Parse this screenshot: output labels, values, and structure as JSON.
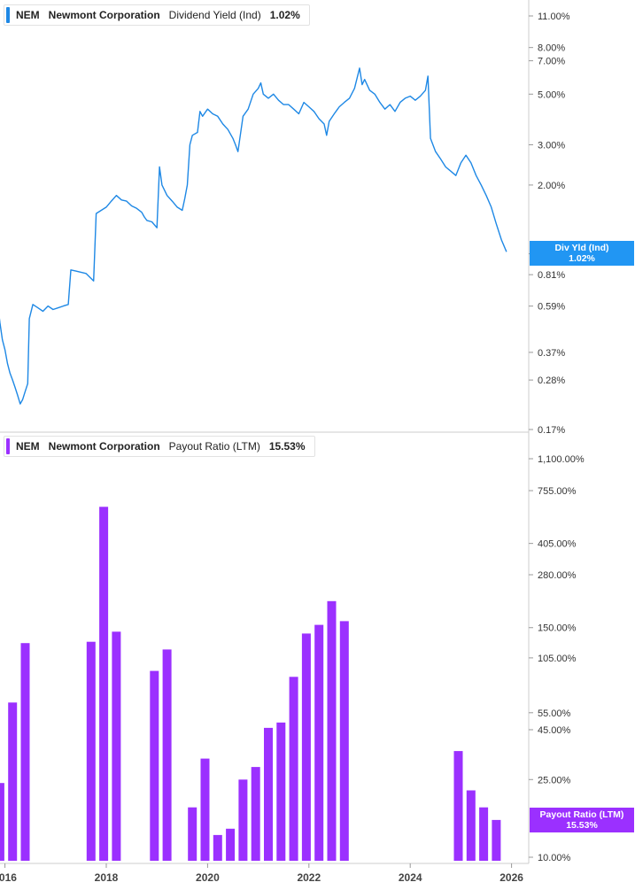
{
  "colors": {
    "yield": "#1e88e5",
    "payout": "#9b30ff",
    "axis": "#cccccc",
    "badge_yield": "#2196f3",
    "badge_payout": "#9b30ff"
  },
  "legend_top": {
    "ticker": "NEM",
    "company": "Newmont Corporation",
    "metric": "Dividend Yield (Ind)",
    "value": "1.02%"
  },
  "legend_bottom": {
    "ticker": "NEM",
    "company": "Newmont Corporation",
    "metric": "Payout Ratio (LTM)",
    "value": "15.53%"
  },
  "badge_top": {
    "label": "Div Yld (Ind)",
    "value": "1.02%"
  },
  "badge_bottom": {
    "label": "Payout Ratio (LTM)",
    "value": "15.53%"
  },
  "chart_data": [
    {
      "type": "line",
      "scale": "log",
      "series": [
        {
          "points": [
            [
              2015.85,
              0.62
            ],
            [
              2015.9,
              0.5
            ],
            [
              2015.95,
              0.42
            ],
            [
              2016.0,
              0.38
            ],
            [
              2016.05,
              0.33
            ],
            [
              2016.1,
              0.3
            ],
            [
              2016.15,
              0.28
            ],
            [
              2016.2,
              0.26
            ],
            [
              2016.25,
              0.24
            ],
            [
              2016.3,
              0.22
            ],
            [
              2016.35,
              0.23
            ],
            [
              2016.4,
              0.25
            ],
            [
              2016.45,
              0.27
            ],
            [
              2016.48,
              0.52
            ],
            [
              2016.55,
              0.6
            ],
            [
              2016.65,
              0.58
            ],
            [
              2016.75,
              0.56
            ],
            [
              2016.85,
              0.59
            ],
            [
              2016.95,
              0.57
            ],
            [
              2017.05,
              0.58
            ],
            [
              2017.15,
              0.59
            ],
            [
              2017.25,
              0.6
            ],
            [
              2017.3,
              0.85
            ],
            [
              2017.4,
              0.84
            ],
            [
              2017.5,
              0.83
            ],
            [
              2017.6,
              0.82
            ],
            [
              2017.7,
              0.78
            ],
            [
              2017.75,
              0.76
            ],
            [
              2017.8,
              1.5
            ],
            [
              2017.9,
              1.55
            ],
            [
              2018.0,
              1.6
            ],
            [
              2018.1,
              1.7
            ],
            [
              2018.2,
              1.8
            ],
            [
              2018.3,
              1.72
            ],
            [
              2018.4,
              1.7
            ],
            [
              2018.5,
              1.62
            ],
            [
              2018.6,
              1.58
            ],
            [
              2018.7,
              1.52
            ],
            [
              2018.75,
              1.45
            ],
            [
              2018.8,
              1.4
            ],
            [
              2018.9,
              1.38
            ],
            [
              2019.0,
              1.3
            ],
            [
              2019.05,
              2.4
            ],
            [
              2019.1,
              2.0
            ],
            [
              2019.2,
              1.8
            ],
            [
              2019.3,
              1.7
            ],
            [
              2019.4,
              1.6
            ],
            [
              2019.5,
              1.55
            ],
            [
              2019.55,
              1.75
            ],
            [
              2019.6,
              2.0
            ],
            [
              2019.65,
              3.0
            ],
            [
              2019.7,
              3.3
            ],
            [
              2019.8,
              3.4
            ],
            [
              2019.85,
              4.2
            ],
            [
              2019.9,
              4.0
            ],
            [
              2020.0,
              4.3
            ],
            [
              2020.1,
              4.1
            ],
            [
              2020.2,
              4.0
            ],
            [
              2020.3,
              3.7
            ],
            [
              2020.4,
              3.5
            ],
            [
              2020.5,
              3.2
            ],
            [
              2020.55,
              3.0
            ],
            [
              2020.6,
              2.8
            ],
            [
              2020.7,
              4.0
            ],
            [
              2020.8,
              4.3
            ],
            [
              2020.9,
              5.0
            ],
            [
              2021.0,
              5.3
            ],
            [
              2021.05,
              5.6
            ],
            [
              2021.1,
              5.0
            ],
            [
              2021.2,
              4.8
            ],
            [
              2021.3,
              5.0
            ],
            [
              2021.4,
              4.7
            ],
            [
              2021.5,
              4.5
            ],
            [
              2021.6,
              4.5
            ],
            [
              2021.7,
              4.3
            ],
            [
              2021.8,
              4.1
            ],
            [
              2021.9,
              4.6
            ],
            [
              2022.0,
              4.4
            ],
            [
              2022.1,
              4.2
            ],
            [
              2022.2,
              3.9
            ],
            [
              2022.3,
              3.7
            ],
            [
              2022.35,
              3.3
            ],
            [
              2022.4,
              3.8
            ],
            [
              2022.5,
              4.1
            ],
            [
              2022.6,
              4.4
            ],
            [
              2022.7,
              4.6
            ],
            [
              2022.8,
              4.8
            ],
            [
              2022.9,
              5.3
            ],
            [
              2023.0,
              6.5
            ],
            [
              2023.05,
              5.5
            ],
            [
              2023.1,
              5.8
            ],
            [
              2023.2,
              5.2
            ],
            [
              2023.3,
              5.0
            ],
            [
              2023.4,
              4.6
            ],
            [
              2023.5,
              4.3
            ],
            [
              2023.6,
              4.5
            ],
            [
              2023.7,
              4.2
            ],
            [
              2023.8,
              4.6
            ],
            [
              2023.9,
              4.8
            ],
            [
              2024.0,
              4.9
            ],
            [
              2024.1,
              4.7
            ],
            [
              2024.2,
              4.9
            ],
            [
              2024.3,
              5.2
            ],
            [
              2024.35,
              6.0
            ],
            [
              2024.4,
              3.2
            ],
            [
              2024.5,
              2.8
            ],
            [
              2024.6,
              2.6
            ],
            [
              2024.7,
              2.4
            ],
            [
              2024.8,
              2.3
            ],
            [
              2024.9,
              2.2
            ],
            [
              2025.0,
              2.5
            ],
            [
              2025.1,
              2.7
            ],
            [
              2025.2,
              2.5
            ],
            [
              2025.3,
              2.2
            ],
            [
              2025.4,
              2.0
            ],
            [
              2025.5,
              1.8
            ],
            [
              2025.6,
              1.6
            ],
            [
              2025.7,
              1.35
            ],
            [
              2025.8,
              1.15
            ],
            [
              2025.9,
              1.02
            ]
          ]
        }
      ],
      "y_ticks": [
        "11.00%",
        "8.00%",
        "7.00%",
        "5.00%",
        "3.00%",
        "2.00%",
        "1.00%",
        "0.81%",
        "0.59%",
        "0.37%",
        "0.28%",
        "0.17%"
      ],
      "x_ticks": [
        "2016",
        "2018",
        "2020",
        "2022",
        "2024",
        "2026"
      ]
    },
    {
      "type": "bar",
      "scale": "log",
      "x": [
        2015.9,
        2016.15,
        2016.4,
        2017.7,
        2017.95,
        2018.2,
        2018.95,
        2019.2,
        2019.7,
        2019.95,
        2020.2,
        2020.45,
        2020.7,
        2020.95,
        2021.2,
        2021.45,
        2021.7,
        2021.95,
        2022.2,
        2022.45,
        2022.7,
        2024.95,
        2025.2,
        2025.45,
        2025.7
      ],
      "values": [
        24,
        62,
        125,
        127,
        624,
        143,
        90,
        116,
        18,
        32,
        13,
        14,
        25,
        29,
        46,
        49,
        84,
        140,
        155,
        205,
        162,
        35,
        22,
        18,
        15.53
      ],
      "y_ticks": [
        "1,100.00%",
        "755.00%",
        "405.00%",
        "280.00%",
        "150.00%",
        "105.00%",
        "55.00%",
        "45.00%",
        "25.00%",
        "10.00%"
      ],
      "x_ticks": [
        "2016",
        "2018",
        "2020",
        "2022",
        "2024",
        "2026"
      ]
    }
  ]
}
